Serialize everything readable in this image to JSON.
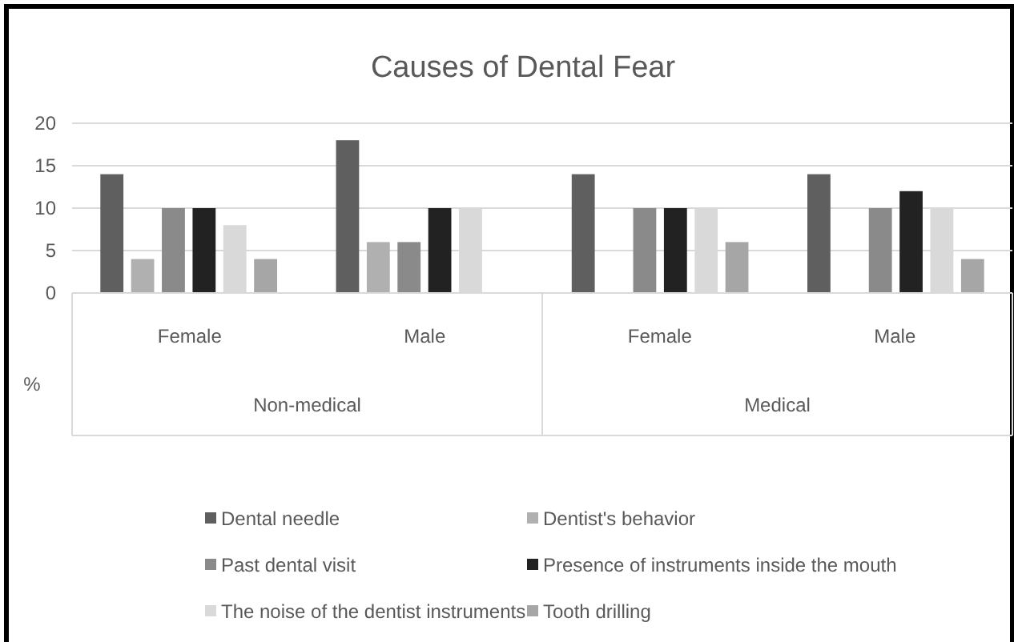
{
  "chart_data": {
    "type": "bar",
    "title": "Causes of Dental Fear",
    "ylabel": "%",
    "categories": [
      "Female",
      "Male",
      "Female",
      "Male"
    ],
    "annotations": [
      "Non-medical",
      "Medical"
    ],
    "series": [
      {
        "name": "Dental needle",
        "color": "#5f5f5f",
        "values": [
          14,
          18,
          14,
          14
        ]
      },
      {
        "name": "Dentist's behavior",
        "color": "#b0b0b0",
        "values": [
          4,
          6,
          0,
          0
        ]
      },
      {
        "name": "Past dental visit",
        "color": "#8a8a8a",
        "values": [
          10,
          6,
          10,
          10
        ]
      },
      {
        "name": "Presence of instruments inside the mouth",
        "color": "#222222",
        "values": [
          10,
          10,
          10,
          12
        ]
      },
      {
        "name": "The noise of the dentist instruments",
        "color": "#d9d9d9",
        "values": [
          8,
          10,
          10,
          10
        ]
      },
      {
        "name": "Tooth drilling",
        "color": "#a6a6a6",
        "values": [
          4,
          0,
          6,
          4
        ]
      }
    ],
    "ylim": [
      0,
      20
    ],
    "yticks": [
      0,
      5,
      10,
      15,
      20
    ],
    "grid": "y",
    "legend": "bottom"
  }
}
